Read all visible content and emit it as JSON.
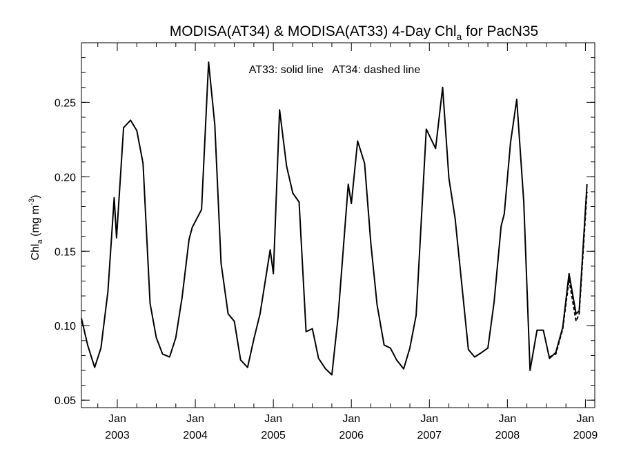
{
  "chart_data": {
    "type": "line",
    "title": "MODISA(AT34) & MODISA(AT33) 4-Day Chl",
    "title_subscript": "a",
    "title_suffix": " for PacN35",
    "annotation": "AT33: solid line   AT34: dashed line",
    "ylabel": "Chl",
    "ylabel_subscript": "a",
    "ylabel_units": " (mg m",
    "ylabel_units_sup": "-3",
    "ylabel_units_close": ")",
    "xlim": [
      2002.54,
      2009.12
    ],
    "ylim": [
      0.045,
      0.29
    ],
    "yticks": [
      0.05,
      0.1,
      0.15,
      0.2,
      0.25
    ],
    "ytick_labels": [
      "0.05",
      "0.10",
      "0.15",
      "0.20",
      "0.25"
    ],
    "xticks": [
      2003.0,
      2004.0,
      2005.0,
      2006.0,
      2007.0,
      2008.0,
      2009.0
    ],
    "xtick_labels_top": [
      "Jan",
      "Jan",
      "Jan",
      "Jan",
      "Jan",
      "Jan",
      "Jan"
    ],
    "xtick_labels_bottom": [
      "2003",
      "2004",
      "2005",
      "2006",
      "2007",
      "2008",
      "2009"
    ],
    "grid": false,
    "series": [
      {
        "style": "solid",
        "points": [
          [
            2002.54,
            0.105
          ],
          [
            2002.62,
            0.087
          ],
          [
            2002.71,
            0.072
          ],
          [
            2002.79,
            0.085
          ],
          [
            2002.88,
            0.123
          ],
          [
            2002.96,
            0.186
          ],
          [
            2002.99,
            0.159
          ],
          [
            2003.08,
            0.233
          ],
          [
            2003.17,
            0.238
          ],
          [
            2003.25,
            0.231
          ],
          [
            2003.33,
            0.209
          ],
          [
            2003.42,
            0.115
          ],
          [
            2003.5,
            0.092
          ],
          [
            2003.58,
            0.081
          ],
          [
            2003.67,
            0.079
          ],
          [
            2003.75,
            0.092
          ],
          [
            2003.83,
            0.119
          ],
          [
            2003.92,
            0.158
          ],
          [
            2003.96,
            0.166
          ],
          [
            2004.08,
            0.178
          ],
          [
            2004.17,
            0.277
          ],
          [
            2004.25,
            0.235
          ],
          [
            2004.33,
            0.142
          ],
          [
            2004.42,
            0.108
          ],
          [
            2004.5,
            0.103
          ],
          [
            2004.58,
            0.077
          ],
          [
            2004.67,
            0.072
          ],
          [
            2004.75,
            0.091
          ],
          [
            2004.83,
            0.108
          ],
          [
            2004.96,
            0.151
          ],
          [
            2005.0,
            0.135
          ],
          [
            2005.08,
            0.245
          ],
          [
            2005.17,
            0.207
          ],
          [
            2005.25,
            0.189
          ],
          [
            2005.33,
            0.183
          ],
          [
            2005.42,
            0.096
          ],
          [
            2005.5,
            0.098
          ],
          [
            2005.58,
            0.078
          ],
          [
            2005.67,
            0.071
          ],
          [
            2005.75,
            0.067
          ],
          [
            2005.83,
            0.106
          ],
          [
            2005.96,
            0.195
          ],
          [
            2006.0,
            0.182
          ],
          [
            2006.08,
            0.224
          ],
          [
            2006.17,
            0.209
          ],
          [
            2006.25,
            0.155
          ],
          [
            2006.33,
            0.114
          ],
          [
            2006.42,
            0.087
          ],
          [
            2006.5,
            0.085
          ],
          [
            2006.58,
            0.077
          ],
          [
            2006.67,
            0.071
          ],
          [
            2006.75,
            0.085
          ],
          [
            2006.83,
            0.107
          ],
          [
            2006.96,
            0.232
          ],
          [
            2007.08,
            0.219
          ],
          [
            2007.17,
            0.26
          ],
          [
            2007.25,
            0.199
          ],
          [
            2007.33,
            0.172
          ],
          [
            2007.5,
            0.084
          ],
          [
            2007.58,
            0.079
          ],
          [
            2007.67,
            0.082
          ],
          [
            2007.75,
            0.085
          ],
          [
            2007.83,
            0.116
          ],
          [
            2007.92,
            0.167
          ],
          [
            2007.96,
            0.175
          ],
          [
            2008.04,
            0.223
          ],
          [
            2008.12,
            0.252
          ],
          [
            2008.21,
            0.183
          ],
          [
            2008.29,
            0.07
          ],
          [
            2008.38,
            0.097
          ],
          [
            2008.46,
            0.097
          ],
          [
            2008.54,
            0.078
          ],
          [
            2008.62,
            0.082
          ],
          [
            2008.71,
            0.099
          ],
          [
            2008.79,
            0.135
          ],
          [
            2008.88,
            0.108
          ],
          [
            2008.92,
            0.11
          ],
          [
            2009.02,
            0.195
          ]
        ]
      },
      {
        "style": "dashed",
        "points": [
          [
            2008.54,
            0.079
          ],
          [
            2008.62,
            0.081
          ],
          [
            2008.71,
            0.098
          ],
          [
            2008.79,
            0.131
          ],
          [
            2008.88,
            0.103
          ],
          [
            2008.92,
            0.108
          ],
          [
            2009.02,
            0.19
          ]
        ]
      }
    ]
  }
}
